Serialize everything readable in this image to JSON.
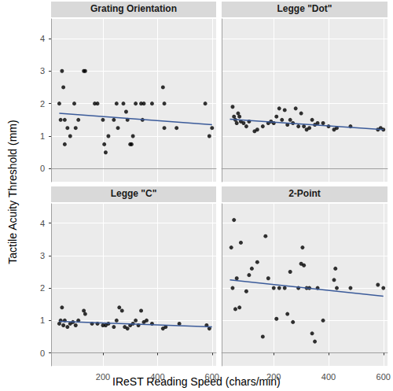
{
  "xlabel": "IReST Reading Speed (chars/min)",
  "ylabel": "Tactile Acuity Threshold (mm)",
  "chart_data": [
    {
      "type": "scatter",
      "title": "Grating Orientation",
      "color": "#000000",
      "grid": true,
      "tick_labels": "y",
      "xlim": [
        10,
        615
      ],
      "ylim": [
        -0.4,
        4.6
      ],
      "xticks": [
        200,
        400,
        600
      ],
      "yticks": [
        0,
        1,
        2,
        3,
        4
      ],
      "x": [
        40,
        45,
        50,
        55,
        60,
        60,
        70,
        80,
        95,
        100,
        110,
        130,
        135,
        170,
        180,
        200,
        205,
        210,
        220,
        240,
        250,
        255,
        275,
        285,
        290,
        300,
        305,
        310,
        320,
        340,
        345,
        350,
        380,
        420,
        425,
        425,
        470,
        575,
        590,
        600
      ],
      "values": [
        2.0,
        1.5,
        3.0,
        2.5,
        0.75,
        1.5,
        1.25,
        1.0,
        2.0,
        1.25,
        1.5,
        3.0,
        3.0,
        2.0,
        2.0,
        1.5,
        0.75,
        0.5,
        1.0,
        1.5,
        2.0,
        1.25,
        2.0,
        1.75,
        1.5,
        0.75,
        0.75,
        1.0,
        2.0,
        2.0,
        1.5,
        2.0,
        2.0,
        2.5,
        2.0,
        1.25,
        1.25,
        2.0,
        1.0,
        1.25
      ],
      "fit": {
        "type": "line",
        "color": "#3b5b9a",
        "x": [
          40,
          600
        ],
        "values": [
          1.7,
          1.35
        ]
      }
    },
    {
      "type": "scatter",
      "title": "Legge \"Dot\"",
      "color": "#000000",
      "grid": true,
      "tick_labels": false,
      "xlim": [
        10,
        615
      ],
      "ylim": [
        -0.4,
        4.6
      ],
      "xticks": [
        200,
        400,
        600
      ],
      "yticks": [
        0,
        1,
        2,
        3,
        4
      ],
      "x": [
        50,
        55,
        60,
        65,
        70,
        75,
        80,
        90,
        100,
        110,
        130,
        140,
        160,
        180,
        190,
        200,
        210,
        220,
        230,
        240,
        250,
        260,
        270,
        280,
        290,
        300,
        310,
        320,
        330,
        340,
        350,
        360,
        380,
        400,
        420,
        430,
        480,
        580,
        590,
        600
      ],
      "values": [
        1.9,
        1.6,
        1.5,
        1.4,
        1.7,
        1.6,
        1.45,
        1.4,
        1.3,
        1.45,
        1.15,
        1.2,
        1.3,
        1.4,
        1.45,
        1.4,
        1.6,
        1.85,
        1.5,
        1.8,
        1.35,
        1.5,
        1.4,
        1.85,
        1.3,
        1.7,
        1.3,
        1.2,
        1.25,
        1.5,
        1.35,
        1.4,
        1.4,
        1.3,
        1.2,
        1.25,
        1.3,
        1.2,
        1.25,
        1.2
      ],
      "fit": {
        "type": "line",
        "color": "#3b5b9a",
        "x": [
          40,
          600
        ],
        "values": [
          1.52,
          1.2
        ]
      }
    },
    {
      "type": "scatter",
      "title": "Legge \"C\"",
      "color": "#000000",
      "grid": true,
      "tick_labels": true,
      "xlim": [
        10,
        615
      ],
      "ylim": [
        -0.4,
        4.6
      ],
      "xticks": [
        200,
        400,
        600
      ],
      "yticks": [
        0,
        1,
        2,
        3,
        4
      ],
      "x": [
        40,
        45,
        50,
        55,
        60,
        70,
        80,
        90,
        100,
        110,
        130,
        135,
        160,
        180,
        200,
        210,
        220,
        240,
        250,
        260,
        270,
        280,
        290,
        300,
        310,
        320,
        330,
        340,
        350,
        360,
        380,
        420,
        430,
        480,
        580,
        590
      ],
      "values": [
        0.9,
        1.0,
        1.4,
        0.85,
        1.0,
        0.8,
        0.9,
        0.95,
        0.85,
        1.0,
        1.3,
        1.2,
        0.9,
        0.9,
        0.85,
        0.85,
        0.9,
        0.8,
        1.0,
        1.4,
        1.3,
        0.8,
        0.75,
        0.85,
        0.9,
        1.0,
        0.85,
        1.3,
        0.95,
        1.0,
        0.9,
        0.75,
        0.8,
        0.9,
        0.85,
        0.75
      ],
      "fit": {
        "type": "line",
        "color": "#3b5b9a",
        "x": [
          40,
          600
        ],
        "values": [
          0.97,
          0.8
        ]
      }
    },
    {
      "type": "scatter",
      "title": "2-Point",
      "color": "#000000",
      "grid": true,
      "tick_labels": "x",
      "xlim": [
        10,
        615
      ],
      "ylim": [
        -0.4,
        4.6
      ],
      "xticks": [
        200,
        400,
        600
      ],
      "yticks": [
        0,
        1,
        2,
        3,
        4
      ],
      "x": [
        45,
        50,
        55,
        60,
        65,
        75,
        80,
        100,
        110,
        120,
        140,
        160,
        170,
        180,
        200,
        210,
        220,
        240,
        250,
        260,
        270,
        290,
        300,
        305,
        310,
        320,
        330,
        340,
        350,
        360,
        380,
        420,
        425,
        430,
        480,
        580,
        600
      ],
      "values": [
        3.25,
        2.0,
        4.1,
        1.35,
        2.3,
        1.4,
        3.4,
        1.9,
        2.4,
        2.6,
        2.8,
        0.5,
        3.6,
        2.3,
        2.0,
        1.05,
        2.0,
        2.0,
        1.2,
        2.5,
        0.95,
        2.0,
        2.75,
        3.25,
        2.7,
        2.0,
        2.0,
        0.6,
        0.35,
        2.0,
        1.0,
        2.25,
        2.6,
        2.0,
        2.0,
        2.1,
        2.0
      ],
      "fit": {
        "type": "line",
        "color": "#3b5b9a",
        "x": [
          40,
          600
        ],
        "values": [
          2.25,
          1.75
        ]
      }
    }
  ]
}
